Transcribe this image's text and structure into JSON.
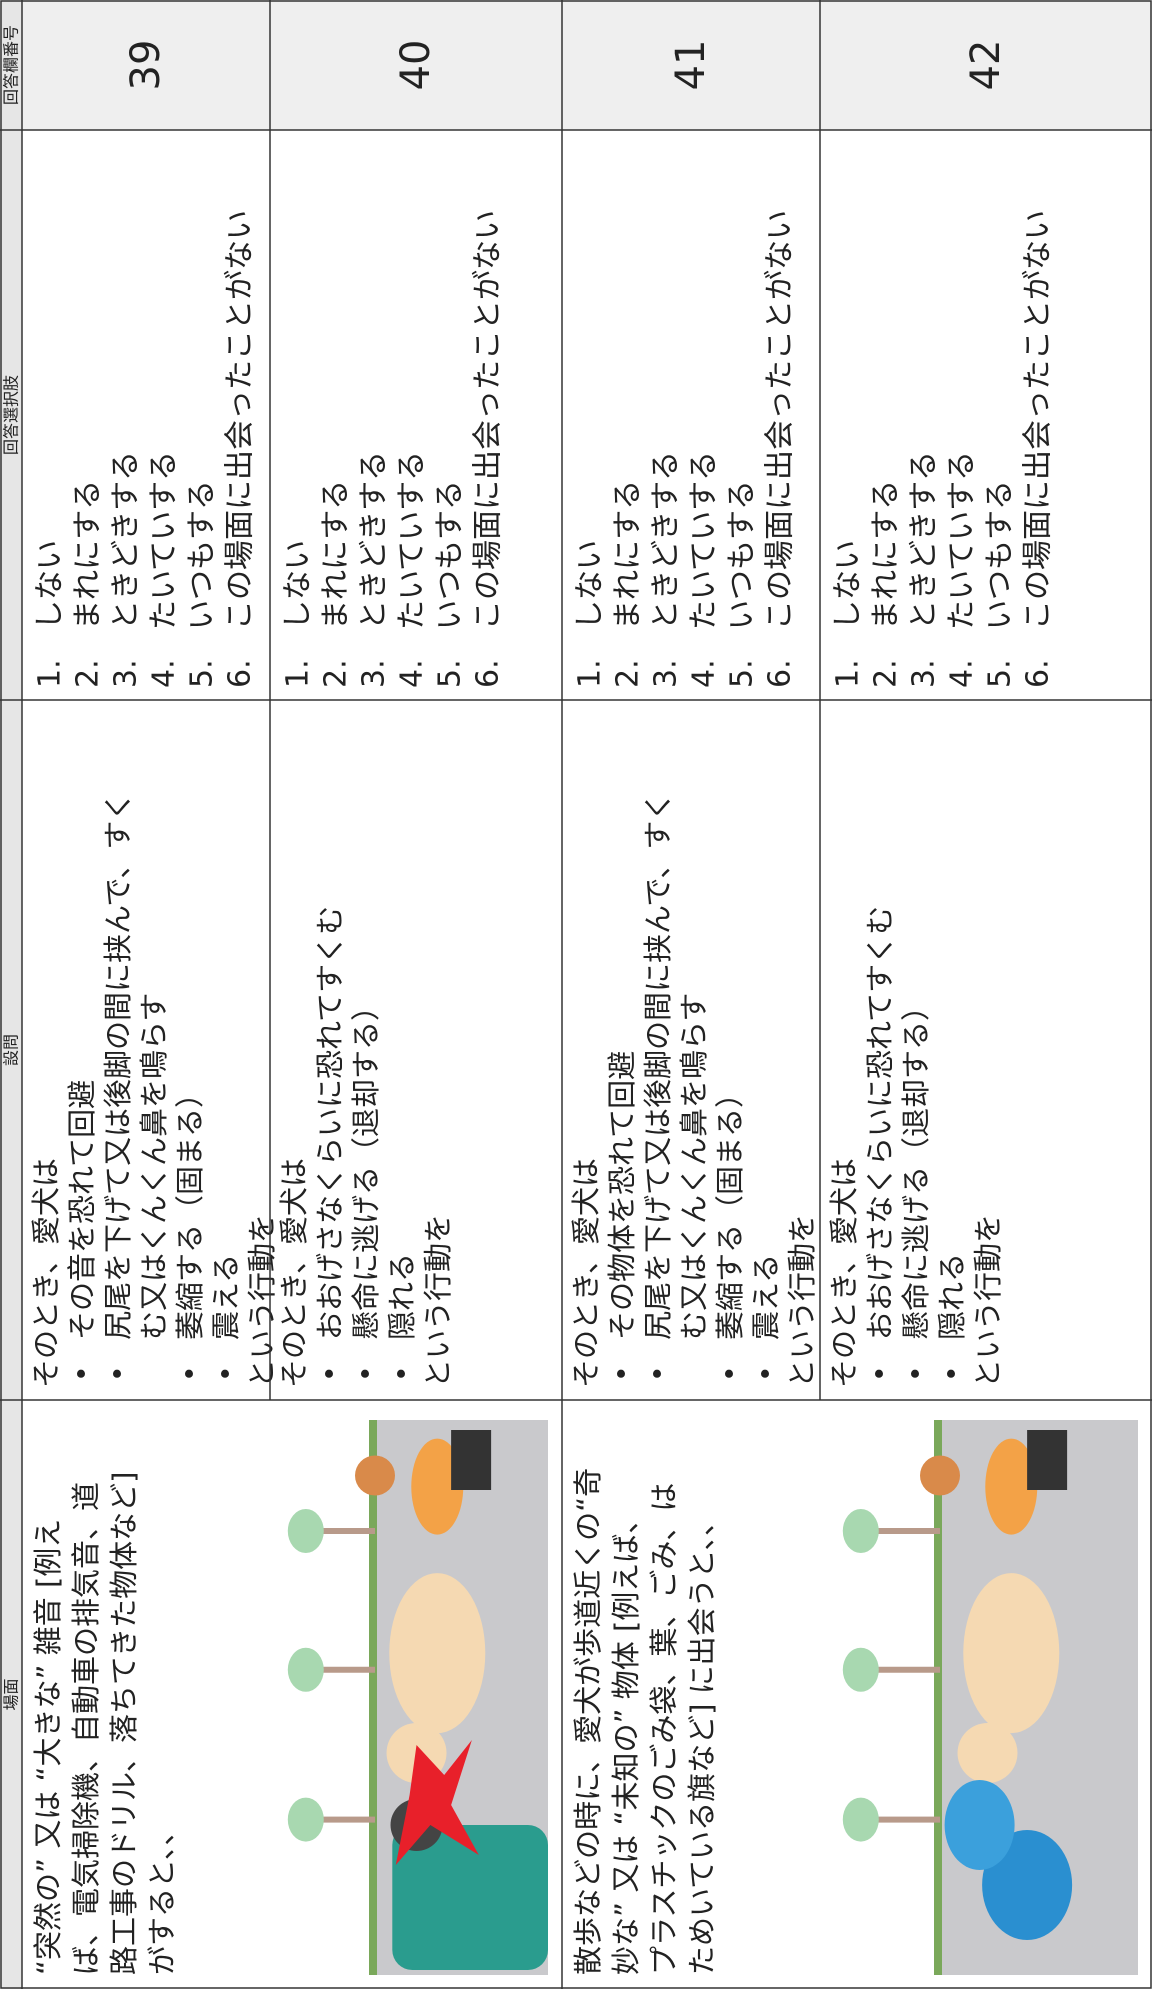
{
  "header": {
    "scene": "場面",
    "question": "設問",
    "choices": "回答選択肢",
    "answer_no": "回答欄番号"
  },
  "scenes": [
    {
      "lines": [
        "“突然の” 又は “大きな” 雑音 [例え",
        "ば、電気掃除機、自動車の排気音、道",
        "路工事のドリル、落ちてきた物体など]",
        "がすると、、"
      ]
    },
    {
      "lines": [
        "散歩などの時に、愛犬が歩道近くの“奇",
        "妙な” 又は “未知の” 物体 [例えば、",
        "プラスチックのごみ袋、葉、ごみ、は",
        "ためいている旗など] に出会うと、、"
      ]
    }
  ],
  "rows": [
    {
      "answer_no": "39",
      "question": [
        {
          "text": "そのとき、愛犬は"
        },
        {
          "bullet": "•",
          "text": [
            "その音を恐れて回避"
          ]
        },
        {
          "bullet": "•",
          "text": [
            "尻尾を下げて又は後脚の間に挟んで、すく",
            "む又はくんくん鼻を鳴らす"
          ]
        },
        {
          "bullet": "•",
          "text": [
            "萎縮する（固まる）"
          ]
        },
        {
          "bullet": "•",
          "text": [
            "震える"
          ]
        },
        {
          "text": "という行動を"
        }
      ],
      "choices": [
        {
          "num": "1.",
          "text": "しない"
        },
        {
          "num": "2.",
          "text": "まれにする"
        },
        {
          "num": "3.",
          "text": "ときどきする"
        },
        {
          "num": "4.",
          "text": "たいていする"
        },
        {
          "num": "5.",
          "text": "いつもする"
        },
        {
          "num": "6.",
          "text": "この場面に出会ったことがない"
        }
      ]
    },
    {
      "answer_no": "40",
      "question": [
        {
          "text": "そのとき、愛犬は"
        },
        {
          "bullet": "•",
          "text": [
            "おおげさなくらいに恐れてすくむ"
          ]
        },
        {
          "bullet": "•",
          "text": [
            "懸命に逃げる（退却する）"
          ]
        },
        {
          "bullet": "•",
          "text": [
            "隠れる"
          ]
        },
        {
          "text": "という行動を"
        }
      ],
      "choices": [
        {
          "num": "1.",
          "text": "しない"
        },
        {
          "num": "2.",
          "text": "まれにする"
        },
        {
          "num": "3.",
          "text": "ときどきする"
        },
        {
          "num": "4.",
          "text": "たいていする"
        },
        {
          "num": "5.",
          "text": "いつもする"
        },
        {
          "num": "6.",
          "text": "この場面に出会ったことがない"
        }
      ]
    },
    {
      "answer_no": "41",
      "question": [
        {
          "text": "そのとき、愛犬は"
        },
        {
          "bullet": "•",
          "text": [
            "その物体を恐れて回避"
          ]
        },
        {
          "bullet": "•",
          "text": [
            "尻尾を下げて又は後脚の間に挟んで、すく",
            "む又はくんくん鼻を鳴らす"
          ]
        },
        {
          "bullet": "•",
          "text": [
            "萎縮する（固まる）"
          ]
        },
        {
          "bullet": "•",
          "text": [
            "震える"
          ]
        },
        {
          "text": "という行動を"
        }
      ],
      "choices": [
        {
          "num": "1.",
          "text": "しない"
        },
        {
          "num": "2.",
          "text": "まれにする"
        },
        {
          "num": "3.",
          "text": "ときどきする"
        },
        {
          "num": "4.",
          "text": "たいていする"
        },
        {
          "num": "5.",
          "text": "いつもする"
        },
        {
          "num": "6.",
          "text": "この場面に出会ったことがない"
        }
      ]
    },
    {
      "answer_no": "42",
      "question": [
        {
          "text": "そのとき、愛犬は"
        },
        {
          "bullet": "•",
          "text": [
            "おおげさなくらいに恐れてすくむ"
          ]
        },
        {
          "bullet": "•",
          "text": [
            "懸命に逃げる（退却する）"
          ]
        },
        {
          "bullet": "•",
          "text": [
            "隠れる"
          ]
        },
        {
          "text": "という行動を"
        }
      ],
      "choices": [
        {
          "num": "1.",
          "text": "しない"
        },
        {
          "num": "2.",
          "text": "まれにする"
        },
        {
          "num": "3.",
          "text": "ときどきする"
        },
        {
          "num": "4.",
          "text": "たいていする"
        },
        {
          "num": "5.",
          "text": "いつもする"
        },
        {
          "num": "6.",
          "text": "この場面に出会ったことがない"
        }
      ]
    }
  ]
}
